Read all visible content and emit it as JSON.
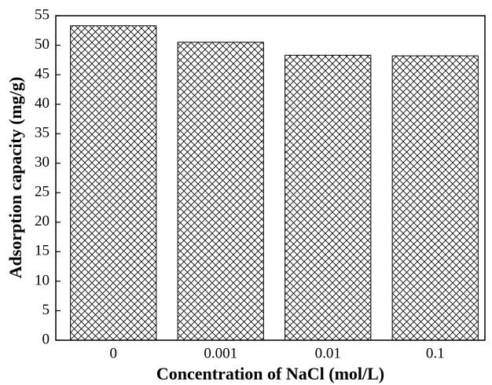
{
  "chart_data": {
    "type": "bar",
    "x_label": "Concentration of NaCl (mol/L)",
    "y_label": "Adsorption capacity (mg/g)",
    "categories": [
      "0",
      "0.001",
      "0.01",
      "0.1"
    ],
    "values": [
      53.3,
      50.5,
      48.3,
      48.2
    ],
    "color": "#000000",
    "ylim": [
      0,
      55
    ],
    "yticks": [
      0,
      5,
      10,
      15,
      20,
      25,
      30,
      35,
      40,
      45,
      50,
      55
    ],
    "grid": false
  }
}
